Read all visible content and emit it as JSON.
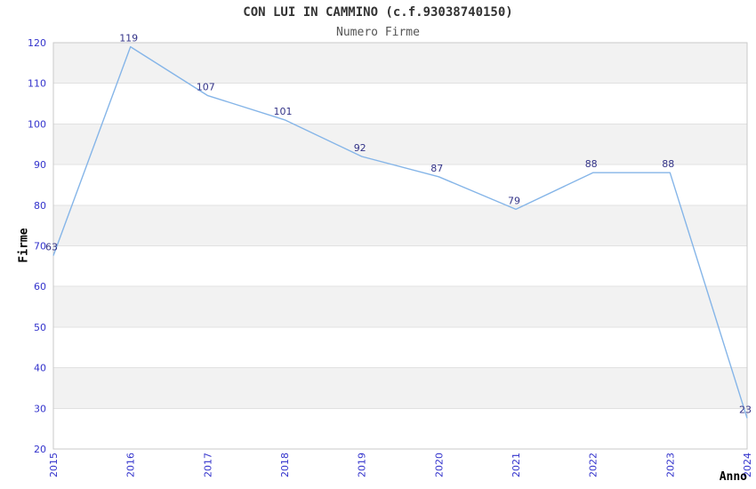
{
  "chart_data": {
    "type": "line",
    "title": "CON LUI IN CAMMINO (c.f.93038740150)",
    "subtitle": "Numero Firme",
    "xlabel": "Anno",
    "ylabel": "Firme",
    "categories": [
      "2015",
      "2016",
      "2017",
      "2018",
      "2019",
      "2020",
      "2021",
      "2022",
      "2023",
      "2024"
    ],
    "series": [
      {
        "name": "Numero Firme",
        "values": [
          63,
          119,
          107,
          101,
          92,
          87,
          79,
          88,
          88,
          23
        ]
      }
    ],
    "data_labels": [
      "63",
      "119",
      "107",
      "101",
      "92",
      "87",
      "79",
      "88",
      "88",
      "23"
    ],
    "ylim": [
      20,
      120
    ],
    "yticks": [
      20,
      30,
      40,
      50,
      60,
      70,
      80,
      90,
      100,
      110,
      120
    ],
    "grid": "horizontal alternating gray bands with thin lines at each decade",
    "legend": "none",
    "markers": "none",
    "x_tick_rotation": 90
  },
  "colors": {
    "background": "#ffffff",
    "line": "#85b5e8",
    "band": "#f2f2f2",
    "gridline": "#e1e1e1",
    "plot_border": "#c9c9c9",
    "tick_label": "#3333cc",
    "data_label": "#333388",
    "title": "#333333",
    "subtitle": "#555555",
    "axis_label": "#000000"
  }
}
